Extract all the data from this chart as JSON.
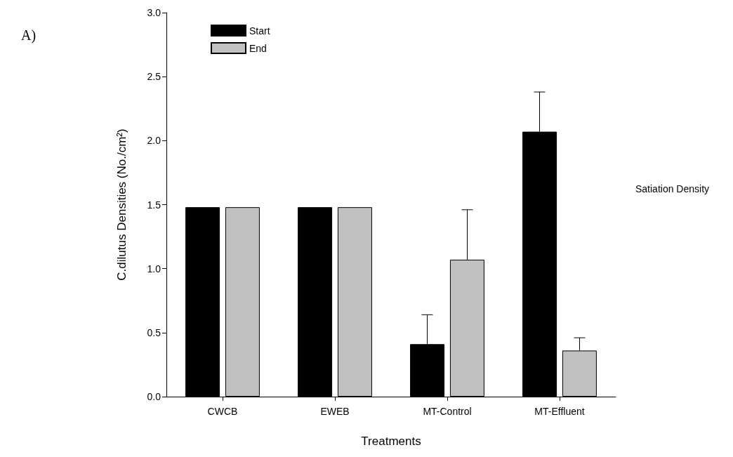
{
  "chart_data": {
    "type": "bar",
    "xlabel": "Treatments",
    "ylabel": "C.dilutus Densities (No./cm²)",
    "categories": [
      "CWCB",
      "EWEB",
      "MT-Control",
      "MT-Effluent"
    ],
    "series": [
      {
        "name": "Start",
        "color": "#000000",
        "values": [
          1.48,
          1.48,
          0.41,
          2.07
        ],
        "errors": [
          null,
          null,
          [
            0.41,
            0.64
          ],
          [
            2.07,
            2.38
          ]
        ]
      },
      {
        "name": "End",
        "color": "#c0c0c0",
        "values": [
          1.48,
          1.48,
          1.07,
          0.36
        ],
        "errors": [
          null,
          null,
          [
            1.07,
            1.46
          ],
          [
            0.36,
            0.46
          ]
        ]
      }
    ],
    "ylim": [
      0,
      3
    ],
    "yticks": [
      {
        "value": 0,
        "label": "0.0"
      },
      {
        "value": 0.5,
        "label": "0.5"
      },
      {
        "value": 1,
        "label": "1.0"
      },
      {
        "value": 1.5,
        "label": "1.5"
      },
      {
        "value": 2,
        "label": "2.0"
      },
      {
        "value": 2.5,
        "label": "2.5"
      },
      {
        "value": 3,
        "label": "3.0"
      }
    ],
    "annotations": [
      "A)",
      "Satiation Density"
    ],
    "legend": "top left",
    "grid": false
  }
}
